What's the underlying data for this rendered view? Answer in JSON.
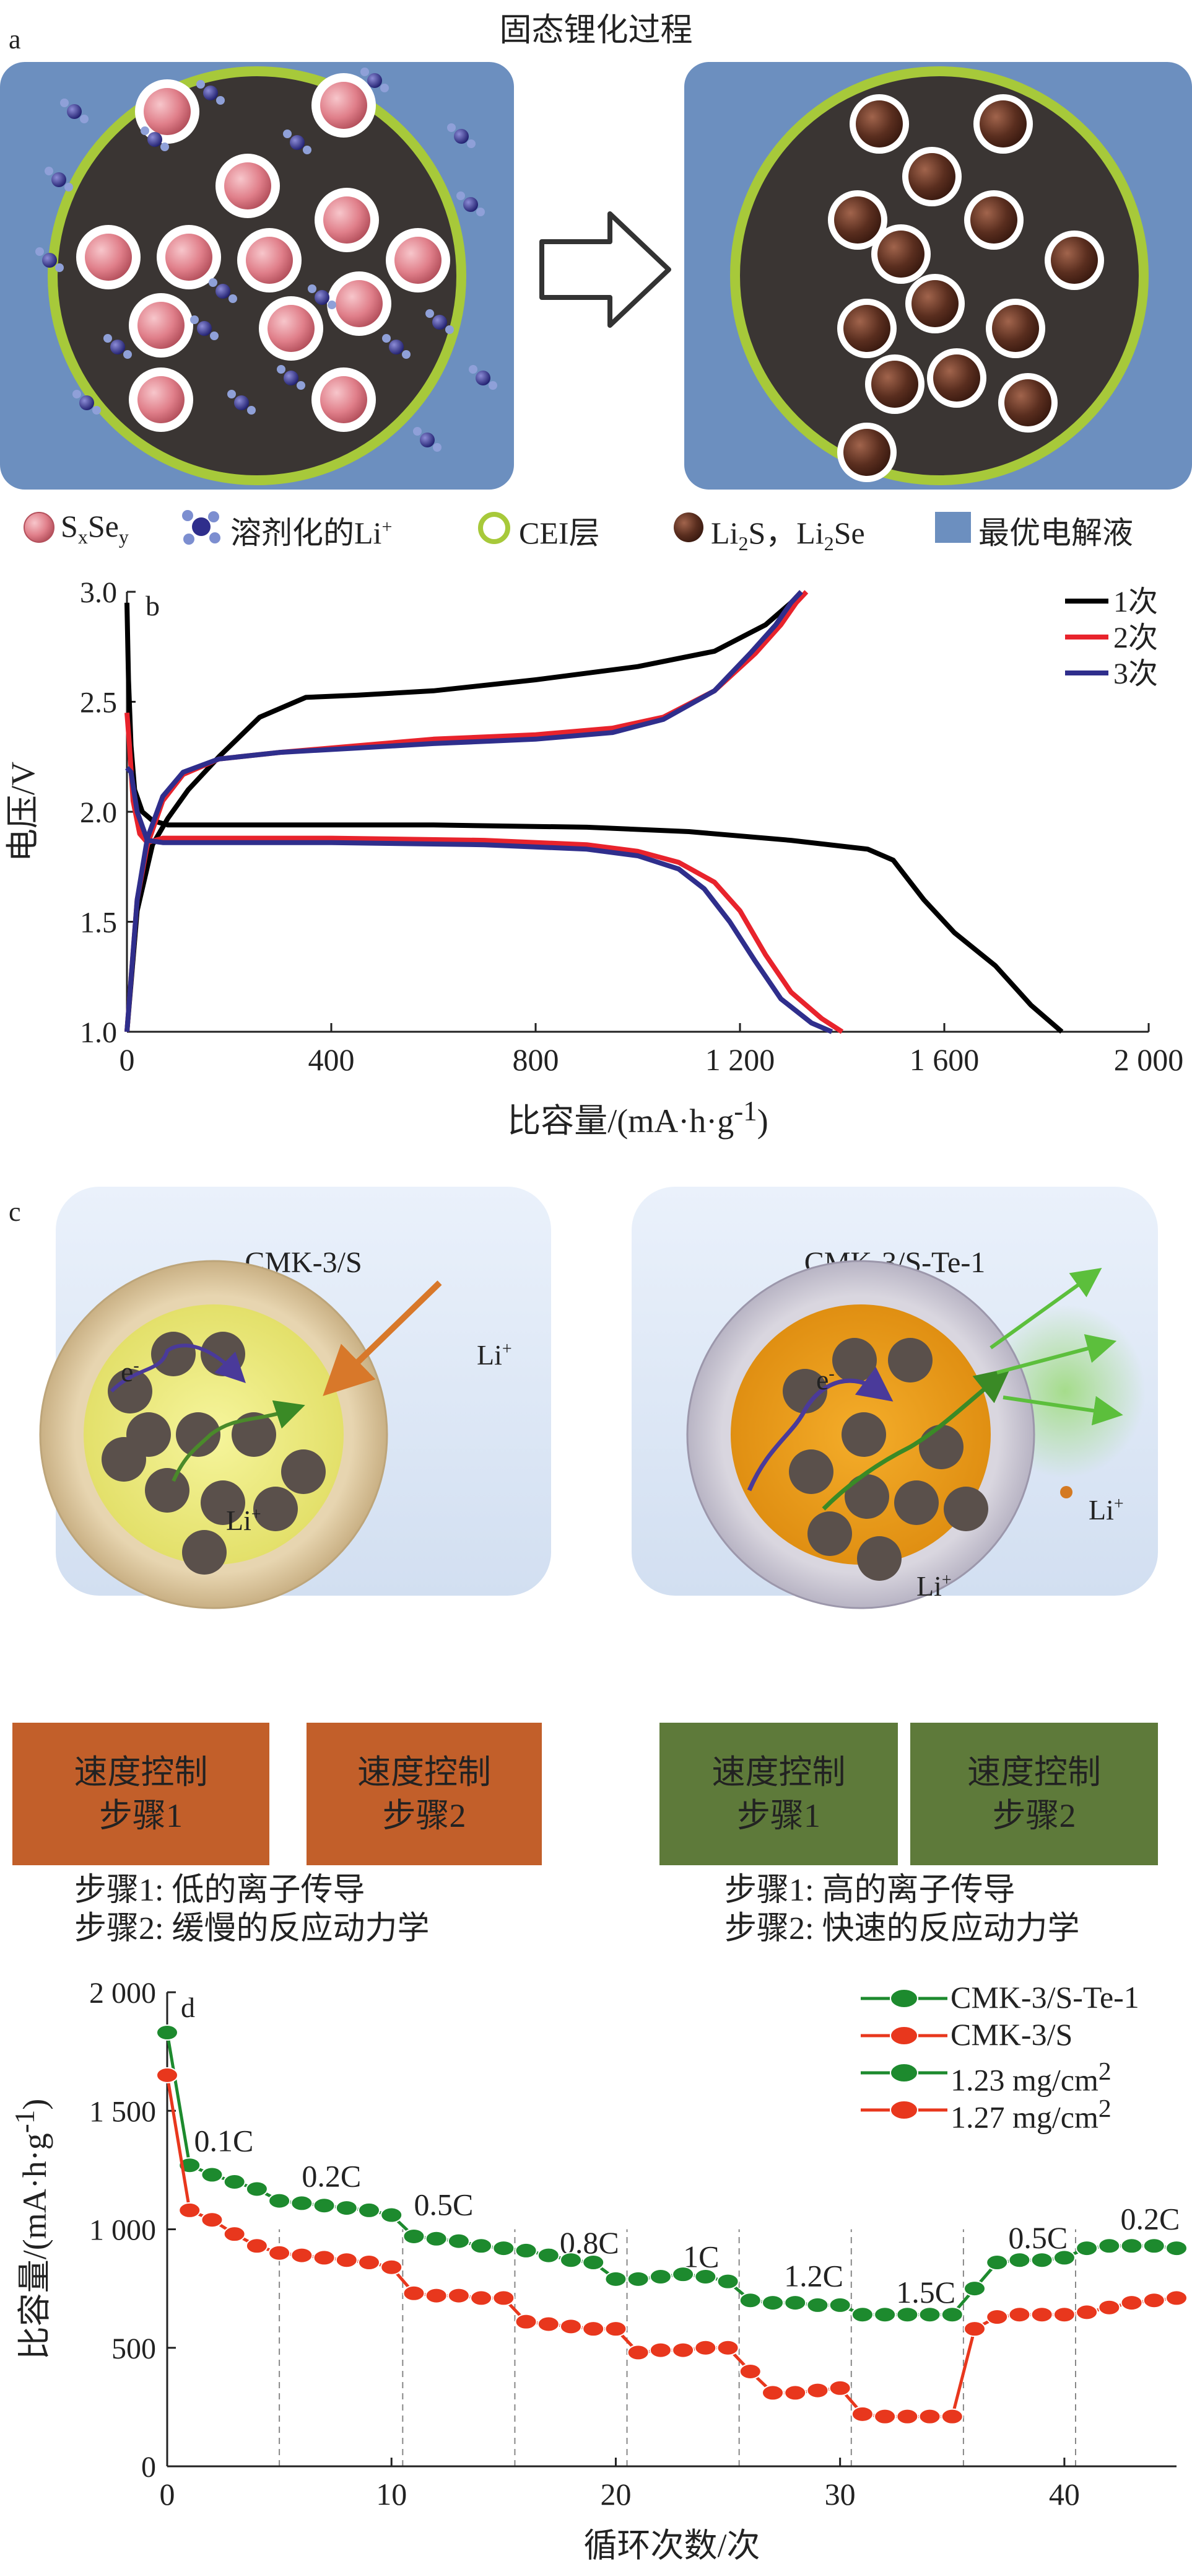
{
  "panel_a": {
    "label": "a",
    "title": "固态锂化过程",
    "legend": [
      "S<sub>x</sub>Se<sub>y</sub>",
      "溶剂化的Li<sup>+</sup>",
      "CEI层",
      "Li<sub>2</sub>S，Li<sub>2</sub>Se",
      "最优电解液"
    ],
    "colors": {
      "electrolyte": "#6c8fbf",
      "cei": "#a7c93a",
      "core": "#3a3533",
      "sxsey": "#e07f8a",
      "li2s": "#5a2e1f",
      "solvated_li": "#2f2e8c"
    }
  },
  "panel_c": {
    "label": "c",
    "left": {
      "title": "CMK-3/S",
      "e_label": "e<sup>-</sup>",
      "li_inner": "Li<sup>+</sup>",
      "li_outer": "Li<sup>+</sup>",
      "step1": "速度控制\n步骤1",
      "step2": "速度控制\n步骤2",
      "notes": "步骤1: 低的离子传导\n步骤2: 缓慢的反应动力学",
      "box_color": "#c25f2a"
    },
    "right": {
      "title": "CMK-3/S-Te-1",
      "e_label": "e<sup>-</sup>",
      "li_inner": "Li<sup>+</sup>",
      "li_outer": "Li<sup>+</sup>",
      "step1": "速度控制\n步骤1",
      "step2": "速度控制\n步骤2",
      "notes": "步骤1: 高的离子传导\n步骤2: 快速的反应动力学",
      "box_color": "#5e7a3a"
    }
  },
  "chart_data": [
    {
      "type": "line",
      "label": "b",
      "xlabel": "比容量/(mA·h·g<sup>-1</sup>)",
      "ylabel": "电压/V",
      "xlim": [
        0,
        2000
      ],
      "ylim": [
        1.0,
        3.0
      ],
      "xticks": [
        0,
        400,
        800,
        1200,
        1600,
        2000
      ],
      "xtick_labels": [
        "0",
        "400",
        "800",
        "1 200",
        "1 600",
        "2 000"
      ],
      "yticks": [
        1.0,
        1.5,
        2.0,
        2.5,
        3.0
      ],
      "ytick_labels": [
        "1.0",
        "1.5",
        "2.0",
        "2.5",
        "3.0"
      ],
      "legend_position": "top-right",
      "series": [
        {
          "name": "1次",
          "color": "#000000",
          "discharge": [
            [
              0,
              2.95
            ],
            [
              3,
              2.6
            ],
            [
              8,
              2.3
            ],
            [
              15,
              2.1
            ],
            [
              30,
              2.0
            ],
            [
              50,
              1.96
            ],
            [
              80,
              1.94
            ],
            [
              150,
              1.94
            ],
            [
              300,
              1.94
            ],
            [
              600,
              1.94
            ],
            [
              900,
              1.93
            ],
            [
              1100,
              1.91
            ],
            [
              1300,
              1.87
            ],
            [
              1450,
              1.83
            ],
            [
              1500,
              1.78
            ],
            [
              1560,
              1.6
            ],
            [
              1620,
              1.45
            ],
            [
              1700,
              1.3
            ],
            [
              1770,
              1.12
            ],
            [
              1830,
              1.0
            ]
          ],
          "charge": [
            [
              0,
              1.0
            ],
            [
              20,
              1.55
            ],
            [
              50,
              1.85
            ],
            [
              80,
              1.97
            ],
            [
              120,
              2.1
            ],
            [
              180,
              2.25
            ],
            [
              260,
              2.43
            ],
            [
              350,
              2.52
            ],
            [
              450,
              2.53
            ],
            [
              600,
              2.55
            ],
            [
              800,
              2.6
            ],
            [
              1000,
              2.66
            ],
            [
              1150,
              2.73
            ],
            [
              1250,
              2.85
            ],
            [
              1300,
              2.95
            ],
            [
              1320,
              3.0
            ]
          ]
        },
        {
          "name": "2次",
          "color": "#e8232c",
          "discharge": [
            [
              0,
              2.45
            ],
            [
              5,
              2.3
            ],
            [
              12,
              2.05
            ],
            [
              25,
              1.9
            ],
            [
              40,
              1.86
            ],
            [
              70,
              1.88
            ],
            [
              150,
              1.88
            ],
            [
              400,
              1.88
            ],
            [
              700,
              1.87
            ],
            [
              900,
              1.85
            ],
            [
              1000,
              1.82
            ],
            [
              1080,
              1.77
            ],
            [
              1150,
              1.68
            ],
            [
              1200,
              1.55
            ],
            [
              1250,
              1.35
            ],
            [
              1300,
              1.18
            ],
            [
              1360,
              1.06
            ],
            [
              1400,
              1.0
            ]
          ],
          "charge": [
            [
              0,
              1.0
            ],
            [
              20,
              1.6
            ],
            [
              40,
              1.85
            ],
            [
              70,
              2.05
            ],
            [
              110,
              2.17
            ],
            [
              180,
              2.24
            ],
            [
              300,
              2.27
            ],
            [
              450,
              2.3
            ],
            [
              600,
              2.33
            ],
            [
              800,
              2.35
            ],
            [
              950,
              2.38
            ],
            [
              1050,
              2.43
            ],
            [
              1150,
              2.55
            ],
            [
              1230,
              2.72
            ],
            [
              1280,
              2.85
            ],
            [
              1310,
              2.95
            ],
            [
              1330,
              3.0
            ]
          ]
        },
        {
          "name": "3次",
          "color": "#2f2e8c",
          "discharge": [
            [
              0,
              2.2
            ],
            [
              8,
              2.18
            ],
            [
              20,
              2.0
            ],
            [
              40,
              1.87
            ],
            [
              70,
              1.86
            ],
            [
              150,
              1.86
            ],
            [
              400,
              1.86
            ],
            [
              700,
              1.85
            ],
            [
              900,
              1.83
            ],
            [
              1000,
              1.8
            ],
            [
              1080,
              1.74
            ],
            [
              1130,
              1.65
            ],
            [
              1180,
              1.5
            ],
            [
              1230,
              1.32
            ],
            [
              1280,
              1.15
            ],
            [
              1340,
              1.04
            ],
            [
              1380,
              1.0
            ]
          ],
          "charge": [
            [
              0,
              1.0
            ],
            [
              20,
              1.6
            ],
            [
              40,
              1.88
            ],
            [
              70,
              2.07
            ],
            [
              110,
              2.18
            ],
            [
              180,
              2.24
            ],
            [
              300,
              2.27
            ],
            [
              450,
              2.29
            ],
            [
              600,
              2.31
            ],
            [
              800,
              2.33
            ],
            [
              950,
              2.36
            ],
            [
              1050,
              2.42
            ],
            [
              1150,
              2.55
            ],
            [
              1220,
              2.72
            ],
            [
              1270,
              2.85
            ],
            [
              1300,
              2.95
            ],
            [
              1320,
              3.0
            ]
          ]
        }
      ]
    },
    {
      "type": "line",
      "label": "d",
      "xlabel": "循环次数/次",
      "ylabel": "比容量/(mA·h·g<sup>-1</sup>)",
      "xlim": [
        0,
        45
      ],
      "ylim": [
        0,
        2000
      ],
      "xticks": [
        0,
        10,
        20,
        30,
        40
      ],
      "xtick_labels": [
        "0",
        "10",
        "20",
        "30",
        "40"
      ],
      "yticks": [
        0,
        500,
        1000,
        1500,
        2000
      ],
      "ytick_labels": [
        "0",
        "500",
        "1 000",
        "1 500",
        "2 000"
      ],
      "rate_dividers": [
        5,
        10.5,
        15.5,
        20.5,
        25.5,
        30.5,
        35.5,
        40.5
      ],
      "rate_labels": [
        {
          "text": "0.1C",
          "x": 1.2,
          "y": 1330
        },
        {
          "text": "0.2C",
          "x": 6,
          "y": 1180
        },
        {
          "text": "0.5C",
          "x": 11,
          "y": 1060
        },
        {
          "text": "0.8C",
          "x": 17.5,
          "y": 900
        },
        {
          "text": "1C",
          "x": 23,
          "y": 840
        },
        {
          "text": "1.2C",
          "x": 27.5,
          "y": 760
        },
        {
          "text": "1.5C",
          "x": 32.5,
          "y": 690
        },
        {
          "text": "0.5C",
          "x": 37.5,
          "y": 920
        },
        {
          "text": "0.2C",
          "x": 42.5,
          "y": 1000
        }
      ],
      "legend_position": "top-right",
      "series": [
        {
          "name": "CMK-3/S-Te-1",
          "extra_label": "1.23 mg/cm<sup>2</sup>",
          "color": "#1d8a2e",
          "values": [
            1830,
            1270,
            1230,
            1200,
            1170,
            1120,
            1110,
            1100,
            1090,
            1080,
            1060,
            970,
            960,
            950,
            930,
            920,
            910,
            890,
            870,
            860,
            790,
            790,
            800,
            810,
            800,
            780,
            700,
            690,
            690,
            680,
            680,
            640,
            640,
            640,
            640,
            640,
            750,
            860,
            870,
            870,
            880,
            920,
            930,
            930,
            930,
            920
          ]
        },
        {
          "name": "CMK-3/S",
          "extra_label": "1.27 mg/cm<sup>2</sup>",
          "color": "#e8371d",
          "values": [
            1650,
            1080,
            1040,
            980,
            930,
            900,
            890,
            880,
            870,
            860,
            840,
            730,
            720,
            720,
            710,
            710,
            610,
            600,
            590,
            580,
            580,
            480,
            490,
            490,
            500,
            500,
            400,
            310,
            310,
            320,
            330,
            220,
            210,
            210,
            210,
            210,
            580,
            630,
            640,
            640,
            640,
            650,
            670,
            690,
            700,
            710
          ]
        }
      ]
    }
  ]
}
